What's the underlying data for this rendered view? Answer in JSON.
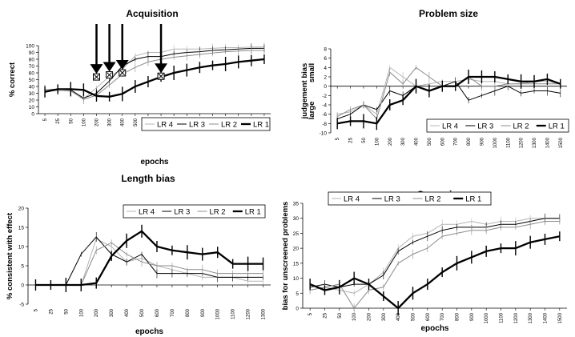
{
  "legend_labels": [
    "LR 4",
    "LR 3",
    "LR 2",
    "LR 1"
  ],
  "chart_data": [
    {
      "id": "acquisition",
      "type": "line",
      "title": "Acquisition",
      "xlabel": "epochs",
      "ylabel": "% correct",
      "ylim": [
        0,
        100
      ],
      "yticks": [
        0,
        10,
        20,
        30,
        40,
        50,
        60,
        70,
        80,
        90,
        100
      ],
      "categories": [
        "5",
        "25",
        "50",
        "100",
        "200",
        "300",
        "400",
        "500",
        "600",
        "700",
        "800",
        "900",
        "1000",
        "1100",
        "1200",
        "1300",
        "1400",
        "1500"
      ],
      "grid": false,
      "legend": "bottom-right",
      "markers": {
        "categories": [
          "200",
          "300",
          "400",
          "700"
        ],
        "values": [
          54,
          57,
          60,
          55
        ]
      },
      "series": [
        {
          "name": "LR 4",
          "color": "#b4b4b4",
          "values": [
            33,
            34,
            33,
            22,
            38,
            55,
            65,
            85,
            90,
            90,
            95,
            95,
            95,
            96,
            97,
            97,
            98,
            98
          ]
        },
        {
          "name": "LR 3",
          "color": "#000000",
          "values": [
            35,
            36,
            35,
            23,
            30,
            48,
            70,
            80,
            84,
            84,
            88,
            90,
            91,
            93,
            94,
            95,
            96,
            96
          ]
        },
        {
          "name": "LR 2",
          "color": "#8c8c8c",
          "values": [
            35,
            36,
            34,
            21,
            27,
            42,
            58,
            68,
            76,
            80,
            83,
            85,
            87,
            89,
            91,
            92,
            93,
            93
          ]
        },
        {
          "name": "LR 1",
          "color": "#000000",
          "values": [
            32,
            36,
            36,
            35,
            26,
            25,
            29,
            40,
            47,
            54,
            60,
            64,
            68,
            71,
            73,
            76,
            78,
            80
          ]
        }
      ]
    },
    {
      "id": "problem-size",
      "type": "line",
      "title": "Problem size",
      "xlabel": "",
      "ylabel": "judgement bias",
      "ylabel_top": "small",
      "ylabel_bottom": "large",
      "ylim": [
        -10,
        8
      ],
      "yticks": [
        -10,
        -8,
        -6,
        -4,
        -2,
        0,
        2,
        4,
        6,
        8
      ],
      "categories": [
        "5",
        "25",
        "50",
        "100",
        "200",
        "300",
        "400",
        "500",
        "600",
        "700",
        "800",
        "900",
        "1000",
        "1100",
        "1200",
        "1300",
        "1400",
        "1500"
      ],
      "grid": false,
      "legend": "bottom-right",
      "series": [
        {
          "name": "LR 4",
          "color": "#b4b4b4",
          "values": [
            -6,
            -5.5,
            -4,
            -6,
            4,
            2,
            0,
            0.5,
            1,
            1,
            1.5,
            1,
            1,
            0.5,
            0.5,
            1,
            1,
            0.5
          ]
        },
        {
          "name": "LR 3",
          "color": "#000000",
          "values": [
            -7,
            -6,
            -4,
            -5,
            -1,
            -2,
            0,
            -1,
            0,
            1,
            -3,
            -2,
            -1,
            0,
            -1.5,
            -1,
            -1,
            -1.5
          ]
        },
        {
          "name": "LR 2",
          "color": "#8c8c8c",
          "values": [
            -6.5,
            -5,
            -4,
            -7,
            3,
            0.5,
            4,
            2,
            0,
            0,
            2,
            0,
            0,
            0.5,
            0.5,
            0.5,
            0.5,
            0.5
          ]
        },
        {
          "name": "LR 1",
          "color": "#000000",
          "values": [
            -8,
            -7.5,
            -7.5,
            -8,
            -4,
            -3,
            0,
            -1,
            0,
            0,
            2,
            2,
            2,
            1.5,
            1,
            1,
            1.5,
            0.5
          ]
        }
      ]
    },
    {
      "id": "length-bias",
      "type": "line",
      "title": "Length bias",
      "xlabel": "epochs",
      "ylabel": "% consistent with effect",
      "ylim": [
        -5,
        20
      ],
      "yticks": [
        -5,
        0,
        5,
        10,
        15,
        20
      ],
      "categories": [
        "5",
        "25",
        "50",
        "100",
        "200",
        "300",
        "400",
        "500",
        "600",
        "700",
        "800",
        "900",
        "1000",
        "1100",
        "1200",
        "1300"
      ],
      "grid": false,
      "legend": "top-right",
      "series": [
        {
          "name": "LR 4",
          "color": "#b4b4b4",
          "values": [
            0,
            0,
            0,
            0,
            12,
            10,
            6,
            7,
            5,
            4,
            3,
            2,
            2,
            2,
            1,
            1
          ]
        },
        {
          "name": "LR 3",
          "color": "#000000",
          "values": [
            0,
            0,
            0,
            8,
            12.5,
            8,
            6,
            8,
            3,
            3,
            3,
            3,
            2,
            2,
            2,
            2
          ]
        },
        {
          "name": "LR 2",
          "color": "#8c8c8c",
          "values": [
            0,
            0,
            0,
            0,
            9,
            11,
            8,
            6,
            5,
            5,
            4,
            4,
            3,
            3,
            3,
            3
          ]
        },
        {
          "name": "LR 1",
          "color": "#000000",
          "values": [
            0,
            0,
            0,
            0,
            0.5,
            7.5,
            11.5,
            14,
            10,
            9,
            8.5,
            8,
            8.5,
            5.5,
            5.5,
            5.5
          ]
        }
      ]
    },
    {
      "id": "screening",
      "type": "line",
      "title": "Screening",
      "xlabel": "epochs",
      "ylabel": "bias for unscreened problems",
      "ylim": [
        0,
        35
      ],
      "yticks": [
        0,
        5,
        10,
        15,
        20,
        25,
        30,
        35
      ],
      "categories": [
        "5",
        "25",
        "50",
        "100",
        "200",
        "300",
        "400",
        "500",
        "600",
        "700",
        "800",
        "900",
        "1000",
        "1100",
        "1200",
        "1300",
        "1400",
        "1500"
      ],
      "grid": false,
      "legend": "top-left",
      "series": [
        {
          "name": "LR 4",
          "color": "#b4b4b4",
          "values": [
            6,
            7,
            6,
            5,
            8,
            12,
            20,
            24,
            25,
            28,
            28,
            29,
            28,
            29,
            29,
            30,
            30,
            30
          ]
        },
        {
          "name": "LR 3",
          "color": "#000000",
          "values": [
            7,
            8,
            7,
            8,
            8,
            11,
            19,
            22,
            24,
            26,
            27,
            27,
            27,
            28,
            28,
            29,
            30,
            30
          ]
        },
        {
          "name": "LR 2",
          "color": "#8c8c8c",
          "values": [
            6,
            7,
            8,
            0,
            6,
            7,
            15,
            18,
            20,
            24,
            25,
            26,
            26,
            27,
            27,
            28,
            29,
            29
          ]
        },
        {
          "name": "LR 1",
          "color": "#000000",
          "values": [
            8,
            6,
            7,
            10,
            8,
            4,
            0,
            5,
            8,
            12,
            15,
            17,
            19,
            20,
            20,
            22,
            23,
            24
          ]
        }
      ]
    }
  ]
}
